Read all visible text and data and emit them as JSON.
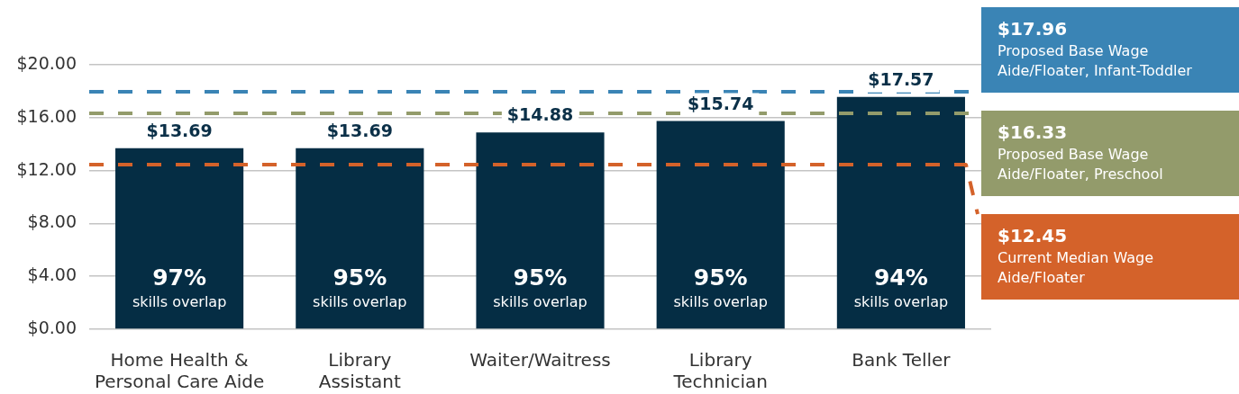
{
  "chart_data": {
    "type": "bar",
    "categories": [
      "Home Health &\nPersonal Care Aide",
      "Library\nAssistant",
      "Waiter/Waitress",
      "Library\nTechnician",
      "Bank Teller"
    ],
    "values": [
      13.69,
      13.69,
      14.88,
      15.74,
      17.57
    ],
    "color": "#052d44",
    "value_labels": [
      "$13.69",
      "$13.69",
      "$14.88",
      "$15.74",
      "$17.57"
    ],
    "ylim": [
      0,
      20
    ],
    "yticks": [
      {
        "value": 0,
        "label": "$0.00"
      },
      {
        "value": 4,
        "label": "$4.00"
      },
      {
        "value": 8,
        "label": "$8.00"
      },
      {
        "value": 12,
        "label": "$12.00"
      },
      {
        "value": 16,
        "label": "$16.00"
      },
      {
        "value": 20,
        "label": "$20.00"
      }
    ],
    "grid": "y",
    "ref_lines": [
      {
        "axis": "y",
        "value": 17.96,
        "label": "$17.96\nProposed Base Wage\nAide/Floater, Infant-Toddler",
        "color": "#3a84b5",
        "line_style": "dashed"
      },
      {
        "axis": "y",
        "value": 16.33,
        "label": "$16.33\nProposed Base Wage\nAide/Floater, Preschool",
        "color": "#939b6b",
        "line_style": "dashed"
      },
      {
        "axis": "y",
        "value": 12.45,
        "label": "$12.45\nCurrent Median Wage\nAide/Floater",
        "color": "#d4622a",
        "line_style": "dashed"
      }
    ],
    "annotations": [
      "97%\nskills overlap",
      "95%\nskills overlap",
      "95%\nskills overlap",
      "95%\nskills overlap",
      "94%\nskills overlap"
    ]
  }
}
